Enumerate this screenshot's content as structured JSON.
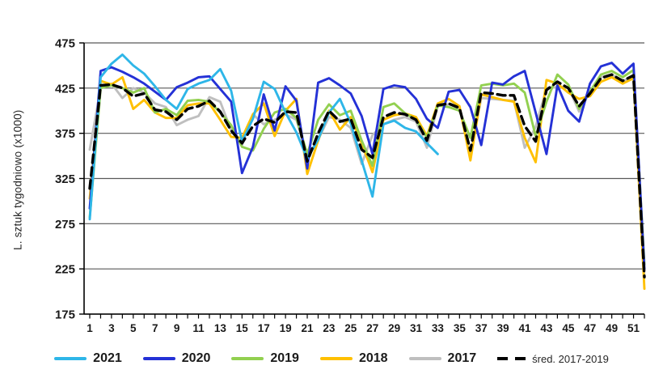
{
  "chart": {
    "y_axis_title": "L. sztuk tygodniowo (x1000)",
    "y_tick_labels": [
      "475",
      "425",
      "375",
      "325",
      "275",
      "225",
      "175"
    ],
    "y_tick_values": [
      475,
      425,
      375,
      325,
      275,
      225,
      175
    ],
    "x_tick_labels": [
      "1",
      "3",
      "5",
      "7",
      "9",
      "11",
      "13",
      "15",
      "17",
      "19",
      "21",
      "23",
      "25",
      "27",
      "29",
      "31",
      "33",
      "35",
      "37",
      "39",
      "41",
      "43",
      "45",
      "47",
      "49",
      "51"
    ],
    "grid_color": "#595959",
    "axis_color": "#000000"
  },
  "chart_data": {
    "type": "line",
    "title": "",
    "xlabel": "",
    "ylabel": "L. sztuk tygodniowo (x1000)",
    "ylim": [
      175,
      475
    ],
    "x_range": [
      1,
      52
    ],
    "grid": "horizontal gridlines every 50",
    "legend_position": "bottom",
    "x": [
      1,
      2,
      3,
      4,
      5,
      6,
      7,
      8,
      9,
      10,
      11,
      12,
      13,
      14,
      15,
      16,
      17,
      18,
      19,
      20,
      21,
      22,
      23,
      24,
      25,
      26,
      27,
      28,
      29,
      30,
      31,
      32,
      33,
      34,
      35,
      36,
      37,
      38,
      39,
      40,
      41,
      42,
      43,
      44,
      45,
      46,
      47,
      48,
      49,
      50,
      51,
      52
    ],
    "series": [
      {
        "name": "2021",
        "color": "#2EB6E8",
        "style": "solid",
        "values": [
          280,
          437,
          452,
          462,
          450,
          441,
          427,
          412,
          402,
          424,
          430,
          434,
          446,
          422,
          366,
          391,
          432,
          424,
          398,
          376,
          347,
          368,
          398,
          413,
          386,
          345,
          305,
          385,
          389,
          381,
          377,
          364,
          352
        ]
      },
      {
        "name": "2020",
        "color": "#2431D6",
        "style": "solid",
        "values": [
          292,
          444,
          448,
          443,
          437,
          430,
          421,
          412,
          426,
          431,
          437,
          438,
          424,
          410,
          331,
          360,
          418,
          378,
          427,
          411,
          336,
          431,
          436,
          428,
          419,
          394,
          352,
          424,
          428,
          426,
          413,
          391,
          381,
          421,
          423,
          404,
          362,
          431,
          429,
          438,
          444,
          398,
          352,
          428,
          400,
          388,
          430,
          449,
          453,
          441,
          452,
          225
        ]
      },
      {
        "name": "2019",
        "color": "#92D050",
        "style": "solid",
        "values": [
          282,
          425,
          428,
          425,
          420,
          425,
          398,
          402,
          395,
          411,
          412,
          410,
          398,
          384,
          360,
          356,
          380,
          398,
          402,
          392,
          352,
          390,
          407,
          395,
          400,
          367,
          339,
          404,
          408,
          397,
          390,
          370,
          406,
          404,
          400,
          370,
          428,
          430,
          428,
          430,
          420,
          372,
          410,
          440,
          429,
          402,
          421,
          440,
          444,
          437,
          445,
          230
        ]
      },
      {
        "name": "2018",
        "color": "#FFC000",
        "style": "solid",
        "values": [
          303,
          433,
          429,
          437,
          402,
          412,
          398,
          392,
          392,
          406,
          408,
          408,
          390,
          371,
          370,
          396,
          408,
          372,
          400,
          413,
          330,
          367,
          400,
          379,
          393,
          364,
          332,
          390,
          395,
          397,
          393,
          372,
          408,
          413,
          405,
          345,
          418,
          415,
          412,
          410,
          370,
          343,
          434,
          430,
          420,
          413,
          416,
          432,
          437,
          430,
          436,
          203
        ]
      },
      {
        "name": "2017",
        "color": "#BFBFBF",
        "style": "solid",
        "values": [
          357,
          425,
          430,
          414,
          425,
          420,
          408,
          404,
          384,
          390,
          394,
          415,
          410,
          378,
          362,
          396,
          385,
          390,
          396,
          390,
          350,
          368,
          393,
          390,
          381,
          341,
          373,
          385,
          390,
          393,
          388,
          359,
          405,
          407,
          403,
          352,
          414,
          413,
          412,
          411,
          359,
          382,
          425,
          426,
          426,
          399,
          421,
          437,
          440,
          433,
          437,
          215
        ]
      },
      {
        "name": "śred. 2017-2019",
        "color": "#000000",
        "style": "dashed",
        "values": [
          314,
          428,
          429,
          425,
          416,
          419,
          401,
          399,
          390,
          402,
          405,
          411,
          399,
          378,
          364,
          383,
          391,
          387,
          399,
          398,
          344,
          375,
          400,
          388,
          391,
          357,
          348,
          393,
          398,
          396,
          390,
          367,
          406,
          408,
          403,
          356,
          420,
          419,
          417,
          417,
          383,
          366,
          423,
          432,
          425,
          405,
          419,
          436,
          440,
          433,
          439,
          216
        ]
      }
    ]
  }
}
